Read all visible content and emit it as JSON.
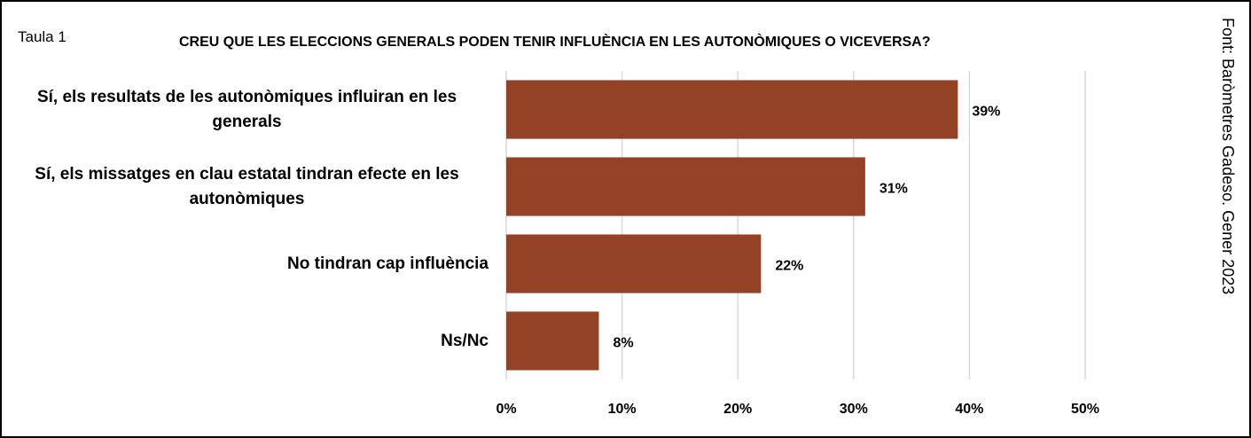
{
  "chart_data": {
    "type": "bar",
    "orientation": "horizontal",
    "label": "Taula 1",
    "title": "CREU QUE LES ELECCIONS GENERALS PODEN TENIR INFLUÈNCIA EN LES AUTONÒMIQUES O VICEVERSA?",
    "source": "Font: Baròmetres Gadeso. Gener 2023",
    "categories": [
      "Sí, els resultats de les autonòmiques influiran en les generals",
      "Sí, els missatges en clau estatal tindran efecte en les autonòmiques",
      "No tindran cap influència",
      "Ns/Nc"
    ],
    "values": [
      39,
      31,
      22,
      8
    ],
    "value_labels": [
      "39%",
      "31%",
      "22%",
      "8%"
    ],
    "color": "#934226",
    "xlim": [
      0,
      50
    ],
    "xticks": [
      {
        "value": 0,
        "label": "0%"
      },
      {
        "value": 10,
        "label": "10%"
      },
      {
        "value": 20,
        "label": "20%"
      },
      {
        "value": 30,
        "label": "30%"
      },
      {
        "value": 40,
        "label": "40%"
      },
      {
        "value": 50,
        "label": "50%"
      }
    ],
    "grid": true
  }
}
